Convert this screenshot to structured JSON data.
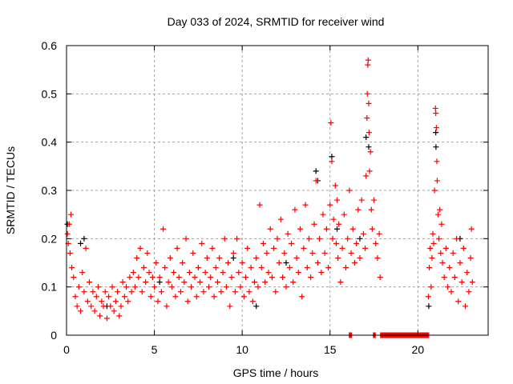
{
  "chart_data": {
    "type": "scatter",
    "title": "Day 033 of 2024, SRMTID for receiver wind",
    "xlabel": "GPS time / hours",
    "ylabel": "SRMTID / TECUs",
    "xlim": [
      0,
      24
    ],
    "ylim": [
      0,
      0.6
    ],
    "xticks": [
      0,
      5,
      10,
      15,
      20
    ],
    "xtick_labels": [
      "0",
      "5",
      "10",
      "15",
      "20"
    ],
    "yticks": [
      0,
      0.1,
      0.2,
      0.3,
      0.4,
      0.5,
      0.6
    ],
    "ytick_labels": [
      "0",
      "0.1",
      "0.2",
      "0.3",
      "0.4",
      "0.5",
      "0.6"
    ],
    "grid": true,
    "marker": "plus",
    "colors": {
      "primary": "#ff0000",
      "secondary": "#000000",
      "grid": "#a0a0a0"
    },
    "series": [
      {
        "name": "secondary",
        "color": "#000000",
        "points": [
          [
            0.05,
            0.23
          ],
          [
            0.8,
            0.19
          ],
          [
            1.0,
            0.2
          ],
          [
            2.3,
            0.06
          ],
          [
            5.3,
            0.11
          ],
          [
            9.5,
            0.16
          ],
          [
            10.8,
            0.06
          ],
          [
            12.5,
            0.15
          ],
          [
            14.2,
            0.34
          ],
          [
            14.3,
            0.32
          ],
          [
            15.1,
            0.37
          ],
          [
            15.4,
            0.22
          ],
          [
            16.7,
            0.2
          ],
          [
            17.05,
            0.41
          ],
          [
            17.2,
            0.39
          ],
          [
            21.02,
            0.42
          ],
          [
            21.03,
            0.39
          ],
          [
            20.62,
            0.06
          ],
          [
            22.4,
            0.2
          ]
        ]
      },
      {
        "name": "primary",
        "color": "#ff0000",
        "points": [
          [
            0.05,
            0.21
          ],
          [
            0.1,
            0.19
          ],
          [
            0.15,
            0.23
          ],
          [
            0.2,
            0.17
          ],
          [
            0.25,
            0.25
          ],
          [
            0.3,
            0.14
          ],
          [
            0.4,
            0.12
          ],
          [
            0.5,
            0.08
          ],
          [
            0.6,
            0.06
          ],
          [
            0.7,
            0.1
          ],
          [
            0.8,
            0.05
          ],
          [
            0.9,
            0.13
          ],
          [
            1.0,
            0.09
          ],
          [
            1.1,
            0.18
          ],
          [
            1.2,
            0.07
          ],
          [
            1.3,
            0.11
          ],
          [
            1.4,
            0.06
          ],
          [
            1.5,
            0.09
          ],
          [
            1.6,
            0.05
          ],
          [
            1.7,
            0.08
          ],
          [
            1.8,
            0.1
          ],
          [
            1.9,
            0.04
          ],
          [
            2.0,
            0.07
          ],
          [
            2.1,
            0.06
          ],
          [
            2.2,
            0.09
          ],
          [
            2.3,
            0.035
          ],
          [
            2.4,
            0.08
          ],
          [
            2.5,
            0.06
          ],
          [
            2.6,
            0.1
          ],
          [
            2.7,
            0.05
          ],
          [
            2.8,
            0.07
          ],
          [
            2.9,
            0.09
          ],
          [
            3.0,
            0.04
          ],
          [
            3.1,
            0.06
          ],
          [
            3.2,
            0.11
          ],
          [
            3.3,
            0.08
          ],
          [
            3.4,
            0.1
          ],
          [
            3.5,
            0.07
          ],
          [
            3.6,
            0.12
          ],
          [
            3.7,
            0.09
          ],
          [
            3.8,
            0.13
          ],
          [
            3.9,
            0.1
          ],
          [
            4.0,
            0.16
          ],
          [
            4.1,
            0.12
          ],
          [
            4.2,
            0.18
          ],
          [
            4.3,
            0.09
          ],
          [
            4.4,
            0.14
          ],
          [
            4.5,
            0.11
          ],
          [
            4.6,
            0.17
          ],
          [
            4.7,
            0.13
          ],
          [
            4.8,
            0.08
          ],
          [
            4.9,
            0.12
          ],
          [
            5.0,
            0.1
          ],
          [
            5.1,
            0.15
          ],
          [
            5.2,
            0.07
          ],
          [
            5.3,
            0.12
          ],
          [
            5.4,
            0.09
          ],
          [
            5.5,
            0.22
          ],
          [
            5.6,
            0.14
          ],
          [
            5.7,
            0.06
          ],
          [
            5.8,
            0.11
          ],
          [
            5.9,
            0.16
          ],
          [
            6.0,
            0.1
          ],
          [
            6.1,
            0.13
          ],
          [
            6.2,
            0.08
          ],
          [
            6.3,
            0.18
          ],
          [
            6.4,
            0.12
          ],
          [
            6.5,
            0.09
          ],
          [
            6.6,
            0.15
          ],
          [
            6.7,
            0.11
          ],
          [
            6.8,
            0.2
          ],
          [
            6.9,
            0.07
          ],
          [
            7.0,
            0.13
          ],
          [
            7.1,
            0.1
          ],
          [
            7.2,
            0.17
          ],
          [
            7.3,
            0.12
          ],
          [
            7.4,
            0.08
          ],
          [
            7.5,
            0.14
          ],
          [
            7.6,
            0.11
          ],
          [
            7.7,
            0.19
          ],
          [
            7.8,
            0.09
          ],
          [
            7.9,
            0.13
          ],
          [
            8.0,
            0.16
          ],
          [
            8.1,
            0.1
          ],
          [
            8.2,
            0.12
          ],
          [
            8.3,
            0.18
          ],
          [
            8.4,
            0.08
          ],
          [
            8.5,
            0.14
          ],
          [
            8.6,
            0.11
          ],
          [
            8.7,
            0.16
          ],
          [
            8.8,
            0.09
          ],
          [
            8.9,
            0.13
          ],
          [
            9.0,
            0.2
          ],
          [
            9.1,
            0.1
          ],
          [
            9.2,
            0.15
          ],
          [
            9.3,
            0.06
          ],
          [
            9.4,
            0.12
          ],
          [
            9.5,
            0.17
          ],
          [
            9.6,
            0.09
          ],
          [
            9.7,
            0.2
          ],
          [
            9.8,
            0.13
          ],
          [
            9.9,
            0.1
          ],
          [
            10.0,
            0.15
          ],
          [
            10.1,
            0.08
          ],
          [
            10.2,
            0.12
          ],
          [
            10.3,
            0.18
          ],
          [
            10.4,
            0.09
          ],
          [
            10.5,
            0.14
          ],
          [
            10.6,
            0.07
          ],
          [
            10.7,
            0.11
          ],
          [
            10.8,
            0.16
          ],
          [
            10.9,
            0.1
          ],
          [
            11.0,
            0.27
          ],
          [
            11.1,
            0.14
          ],
          [
            11.2,
            0.19
          ],
          [
            11.3,
            0.11
          ],
          [
            11.4,
            0.17
          ],
          [
            11.5,
            0.13
          ],
          [
            11.6,
            0.22
          ],
          [
            11.7,
            0.12
          ],
          [
            11.8,
            0.18
          ],
          [
            11.9,
            0.09
          ],
          [
            12.0,
            0.2
          ],
          [
            12.1,
            0.15
          ],
          [
            12.2,
            0.24
          ],
          [
            12.3,
            0.12
          ],
          [
            12.4,
            0.17
          ],
          [
            12.5,
            0.1
          ],
          [
            12.6,
            0.21
          ],
          [
            12.7,
            0.14
          ],
          [
            12.8,
            0.19
          ],
          [
            12.9,
            0.11
          ],
          [
            13.0,
            0.26
          ],
          [
            13.1,
            0.16
          ],
          [
            13.2,
            0.13
          ],
          [
            13.3,
            0.22
          ],
          [
            13.4,
            0.08
          ],
          [
            13.5,
            0.18
          ],
          [
            13.6,
            0.27
          ],
          [
            13.7,
            0.14
          ],
          [
            13.8,
            0.2
          ],
          [
            13.9,
            0.12
          ],
          [
            14.0,
            0.17
          ],
          [
            14.1,
            0.23
          ],
          [
            14.2,
            0.32
          ],
          [
            14.3,
            0.15
          ],
          [
            14.4,
            0.2
          ],
          [
            14.5,
            0.13
          ],
          [
            14.6,
            0.25
          ],
          [
            14.7,
            0.17
          ],
          [
            14.8,
            0.22
          ],
          [
            14.9,
            0.14
          ],
          [
            15.0,
            0.27
          ],
          [
            15.05,
            0.44
          ],
          [
            15.1,
            0.36
          ],
          [
            15.15,
            0.2
          ],
          [
            15.2,
            0.24
          ],
          [
            15.3,
            0.31
          ],
          [
            15.35,
            0.19
          ],
          [
            15.4,
            0.28
          ],
          [
            15.45,
            0.16
          ],
          [
            15.5,
            0.23
          ],
          [
            15.6,
            0.11
          ],
          [
            15.7,
            0.18
          ],
          [
            15.8,
            0.25
          ],
          [
            15.9,
            0.14
          ],
          [
            16.0,
            0.2
          ],
          [
            16.1,
            0.3
          ],
          [
            16.2,
            0.17
          ],
          [
            16.3,
            0.22
          ],
          [
            16.4,
            0.15
          ],
          [
            16.5,
            0.19
          ],
          [
            16.6,
            0.26
          ],
          [
            16.7,
            0.16
          ],
          [
            16.8,
            0.28
          ],
          [
            16.9,
            0.21
          ],
          [
            17.0,
            0.18
          ],
          [
            17.05,
            0.33
          ],
          [
            17.1,
            0.45
          ],
          [
            17.12,
            0.5
          ],
          [
            17.15,
            0.56
          ],
          [
            17.17,
            0.57
          ],
          [
            17.2,
            0.48
          ],
          [
            17.22,
            0.42
          ],
          [
            17.25,
            0.34
          ],
          [
            17.3,
            0.38
          ],
          [
            17.35,
            0.26
          ],
          [
            17.4,
            0.22
          ],
          [
            17.5,
            0.28
          ],
          [
            17.6,
            0.19
          ],
          [
            17.7,
            0.16
          ],
          [
            17.8,
            0.21
          ],
          [
            17.85,
            0.12
          ],
          [
            20.6,
            0.08
          ],
          [
            20.65,
            0.14
          ],
          [
            20.7,
            0.18
          ],
          [
            20.75,
            0.1
          ],
          [
            20.8,
            0.16
          ],
          [
            20.85,
            0.21
          ],
          [
            20.9,
            0.19
          ],
          [
            20.95,
            0.3
          ],
          [
            21.0,
            0.47
          ],
          [
            21.02,
            0.46
          ],
          [
            21.05,
            0.43
          ],
          [
            21.08,
            0.36
          ],
          [
            21.1,
            0.32
          ],
          [
            21.15,
            0.25
          ],
          [
            21.2,
            0.2
          ],
          [
            21.25,
            0.26
          ],
          [
            21.3,
            0.17
          ],
          [
            21.35,
            0.23
          ],
          [
            21.4,
            0.15
          ],
          [
            21.5,
            0.12
          ],
          [
            21.6,
            0.18
          ],
          [
            21.7,
            0.1
          ],
          [
            21.8,
            0.14
          ],
          [
            21.9,
            0.09
          ],
          [
            22.0,
            0.17
          ],
          [
            22.1,
            0.12
          ],
          [
            22.2,
            0.2
          ],
          [
            22.3,
            0.07
          ],
          [
            22.4,
            0.15
          ],
          [
            22.5,
            0.11
          ],
          [
            22.6,
            0.18
          ],
          [
            22.7,
            0.06
          ],
          [
            22.8,
            0.13
          ],
          [
            22.9,
            0.09
          ],
          [
            23.0,
            0.16
          ],
          [
            23.05,
            0.22
          ],
          [
            23.1,
            0.11
          ]
        ]
      }
    ],
    "zero_line_segments": [
      [
        16.07,
        16.25
      ],
      [
        17.44,
        17.6
      ],
      [
        17.85,
        20.64
      ]
    ]
  }
}
